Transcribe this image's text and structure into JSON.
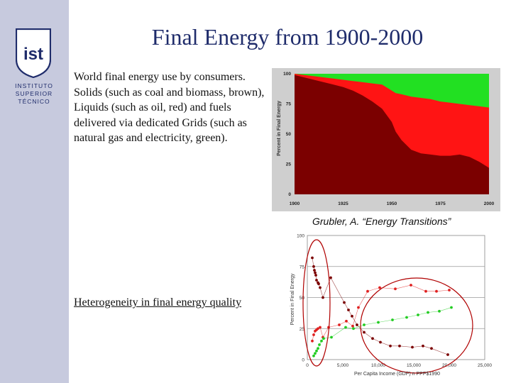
{
  "title": "Final Energy from 1900-2000",
  "description": "World final energy use by consumers. Solids (such as coal and biomass, brown), Liquids (such as oil, red) and fuels delivered via dedicated Grids (such as natural gas and electricity, green).",
  "credit": "Grubler, A. “Energy Transitions”",
  "subtitle": "Heterogeneity in final energy quality",
  "logo": {
    "lines": [
      "INSTITUTO",
      "SUPERIOR",
      "TÉCNICO"
    ],
    "mark": "ist"
  },
  "colors": {
    "solids": "#7b0000",
    "liquids": "#ff1414",
    "grids": "#22e022",
    "title": "#1f2c6b",
    "sidebar": "#c7cade"
  },
  "chart_data": [
    {
      "type": "area",
      "ylabel": "Percent in Final Energy",
      "xlim": [
        1900,
        2000
      ],
      "ylim": [
        0,
        100
      ],
      "x_ticks": [
        "1900",
        "1925",
        "1950",
        "1975",
        "2000"
      ],
      "y_ticks": [
        "0",
        "25",
        "50",
        "75",
        "100"
      ],
      "x": [
        1900,
        1905,
        1910,
        1915,
        1920,
        1925,
        1930,
        1935,
        1940,
        1945,
        1950,
        1952,
        1955,
        1960,
        1965,
        1970,
        1975,
        1980,
        1985,
        1990,
        1995,
        2000
      ],
      "series": [
        {
          "values": [
            99,
            97,
            95,
            93,
            91,
            89,
            86,
            82,
            77,
            71,
            60,
            52,
            45,
            37,
            34,
            33,
            32,
            32,
            33,
            31,
            27,
            22
          ]
        },
        {
          "values": [
            100,
            99,
            98,
            97,
            96,
            95,
            94,
            93,
            92,
            91,
            86,
            84,
            83,
            81,
            80,
            79,
            77,
            76,
            75,
            74,
            73,
            72
          ]
        },
        {
          "values": [
            100,
            100,
            100,
            100,
            100,
            100,
            100,
            100,
            100,
            100,
            100,
            100,
            100,
            100,
            100,
            100,
            100,
            100,
            100,
            100,
            100,
            100
          ]
        }
      ]
    },
    {
      "type": "scatter",
      "xlabel": "Per Capita Income (GDP) n PPP$1990",
      "ylabel": "Percent in Final Energy",
      "xlim": [
        0,
        25000
      ],
      "ylim": [
        0,
        100
      ],
      "x_ticks": [
        "0",
        "5,000",
        "10,000",
        "15,000",
        "20,000",
        "25,000"
      ],
      "y_ticks": [
        "0",
        "25",
        "50",
        "75",
        "100"
      ],
      "series": [
        {
          "color": "#7b0000",
          "points": [
            [
              700,
              82
            ],
            [
              900,
              75
            ],
            [
              1000,
              72
            ],
            [
              1100,
              70
            ],
            [
              1200,
              68
            ],
            [
              1300,
              64
            ],
            [
              1500,
              62
            ],
            [
              1600,
              61
            ],
            [
              1800,
              58
            ],
            [
              2200,
              50
            ],
            [
              3300,
              66
            ],
            [
              5200,
              46
            ],
            [
              5800,
              40
            ],
            [
              6300,
              35
            ],
            [
              7000,
              28
            ],
            [
              8000,
              22
            ],
            [
              9200,
              17
            ],
            [
              10300,
              14
            ],
            [
              11700,
              11
            ],
            [
              13000,
              11
            ],
            [
              14800,
              10
            ],
            [
              16300,
              11
            ],
            [
              17500,
              9
            ],
            [
              19800,
              4
            ]
          ]
        },
        {
          "color": "#e02020",
          "points": [
            [
              700,
              15
            ],
            [
              900,
              20
            ],
            [
              1100,
              23
            ],
            [
              1300,
              24
            ],
            [
              1500,
              25
            ],
            [
              1800,
              26
            ],
            [
              2200,
              18
            ],
            [
              3000,
              26
            ],
            [
              4500,
              28
            ],
            [
              5500,
              31
            ],
            [
              6400,
              27
            ],
            [
              7200,
              42
            ],
            [
              8500,
              55
            ],
            [
              10200,
              58
            ],
            [
              12400,
              57
            ],
            [
              14600,
              60
            ],
            [
              16700,
              55
            ],
            [
              18200,
              55
            ],
            [
              20000,
              56
            ]
          ]
        },
        {
          "color": "#22cc22",
          "points": [
            [
              900,
              3
            ],
            [
              1100,
              5
            ],
            [
              1300,
              7
            ],
            [
              1500,
              9
            ],
            [
              1700,
              12
            ],
            [
              2000,
              15
            ],
            [
              2300,
              17
            ],
            [
              3400,
              18
            ],
            [
              5400,
              26
            ],
            [
              6500,
              25
            ],
            [
              8000,
              28
            ],
            [
              10000,
              30
            ],
            [
              12000,
              32
            ],
            [
              14000,
              34
            ],
            [
              15600,
              36
            ],
            [
              17000,
              38
            ],
            [
              18600,
              39
            ],
            [
              20300,
              42
            ]
          ]
        }
      ]
    }
  ]
}
